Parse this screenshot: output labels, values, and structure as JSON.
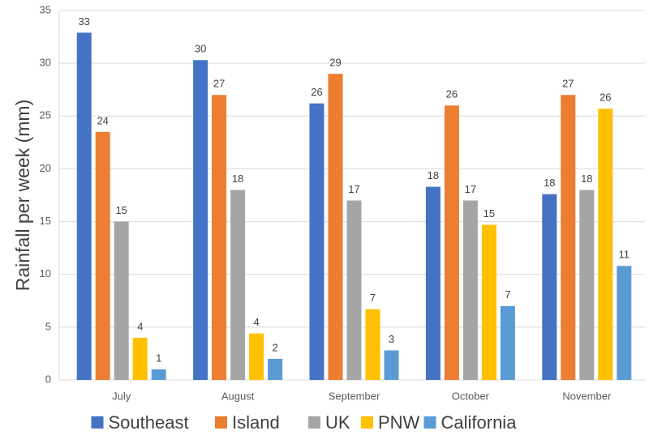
{
  "chart_data": {
    "type": "bar",
    "y_label": "Rainfall per week (mm)",
    "categories": [
      "July",
      "August",
      "September",
      "October",
      "November"
    ],
    "series": [
      {
        "name": "Southeast",
        "color": "#4472c4",
        "values": [
          32.9,
          30.3,
          26.2,
          18.3,
          17.6
        ],
        "value_labels": [
          33,
          30,
          26,
          18,
          18
        ]
      },
      {
        "name": "Island",
        "color": "#ed7d31",
        "values": [
          23.5,
          27,
          29,
          26,
          27
        ],
        "value_labels": [
          24,
          27,
          29,
          26,
          27
        ]
      },
      {
        "name": "UK",
        "color": "#a5a5a5",
        "values": [
          15,
          18,
          17,
          17,
          18
        ],
        "value_labels": [
          15,
          18,
          17,
          17,
          18
        ]
      },
      {
        "name": "PNW",
        "color": "#ffc000",
        "values": [
          4,
          4.4,
          6.7,
          14.7,
          25.7
        ],
        "value_labels": [
          4,
          4,
          7,
          15,
          26
        ]
      },
      {
        "name": "California",
        "color": "#5b9bd5",
        "values": [
          1,
          2,
          2.8,
          7,
          10.8
        ],
        "value_labels": [
          1,
          2,
          3,
          7,
          11
        ]
      }
    ],
    "ylim": [
      0,
      35
    ],
    "yticks": [
      0,
      5,
      10,
      15,
      20,
      25,
      30,
      35
    ],
    "grid": true,
    "legend": "bottom"
  }
}
